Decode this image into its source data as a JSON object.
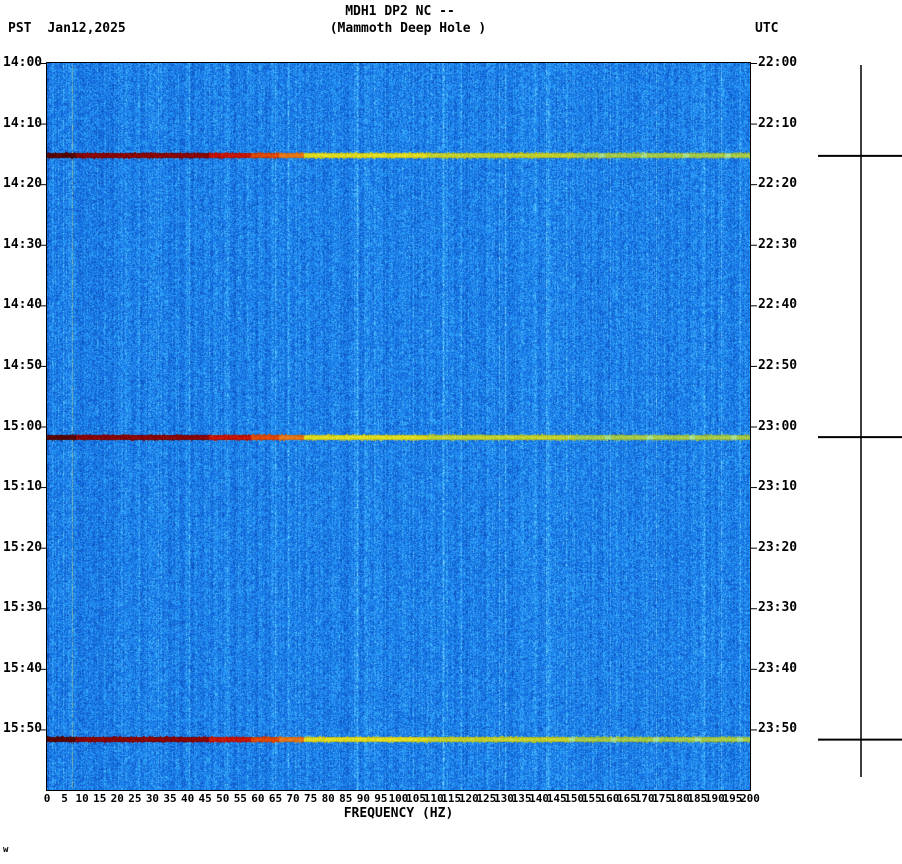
{
  "header": {
    "title": "MDH1 DP2 NC --",
    "subtitle": "(Mammoth Deep Hole )",
    "tz_left": "PST",
    "date": "Jan12,2025",
    "tz_right": "UTC"
  },
  "x_axis": {
    "label": "FREQUENCY (HZ)",
    "min": 0,
    "max": 200,
    "tick_step": 5,
    "ticks": [
      0,
      5,
      10,
      15,
      20,
      25,
      30,
      35,
      40,
      45,
      50,
      55,
      60,
      65,
      70,
      75,
      80,
      85,
      90,
      95,
      100,
      105,
      110,
      115,
      120,
      125,
      130,
      135,
      140,
      145,
      150,
      155,
      160,
      165,
      170,
      175,
      180,
      185,
      190,
      195,
      200
    ]
  },
  "left_ticks": [
    "14:00",
    "14:10",
    "14:20",
    "14:30",
    "14:40",
    "14:50",
    "15:00",
    "15:10",
    "15:20",
    "15:30",
    "15:40",
    "15:50"
  ],
  "right_ticks": [
    "22:00",
    "22:10",
    "22:20",
    "22:30",
    "22:40",
    "22:50",
    "23:00",
    "23:10",
    "23:20",
    "23:30",
    "23:40",
    "23:50"
  ],
  "corner_mark": "w",
  "chart_data": {
    "type": "heatmap",
    "title": "MDH1 DP2 NC --",
    "subtitle": "(Mammoth Deep Hole )",
    "xlabel": "FREQUENCY (HZ)",
    "x_range_hz": [
      0,
      200
    ],
    "x_tick_step_hz": 5,
    "time_start_pst": "14:00",
    "time_end_pst": "16:00",
    "time_start_utc": "22:00",
    "time_end_utc": "24:00",
    "time_tick_minutes": 10,
    "time_span_minutes": 120,
    "background": "broadband blue noise spectrogram",
    "persistent_tone_hz": 7,
    "events": [
      {
        "time_pst": "14:15",
        "time_utc": "22:15",
        "frac": 0.127,
        "description": "broadband event, dark red 0-46 Hz fading through orange/yellow to yellow-green at 200 Hz"
      },
      {
        "time_pst": "15:02",
        "time_utc": "23:02",
        "frac": 0.514,
        "description": "broadband event, dark red 0-46 Hz fading through orange/yellow to yellow-green at 200 Hz"
      },
      {
        "time_pst": "15:52",
        "time_utc": "23:52",
        "frac": 0.93,
        "description": "broadband event, dark red 0-46 Hz fading through orange/yellow to yellow-green at 200 Hz"
      }
    ],
    "event_bands_hz": [
      [
        0,
        8,
        "#5A0000"
      ],
      [
        8,
        46,
        "#8B0000"
      ],
      [
        46,
        58,
        "#C81400"
      ],
      [
        58,
        66,
        "#E04800"
      ],
      [
        66,
        73,
        "#E87818"
      ],
      [
        73,
        108,
        "#E0DC20"
      ],
      [
        108,
        150,
        "#C4D22E"
      ],
      [
        150,
        200,
        "#A6CC4A"
      ]
    ],
    "palette": {
      "noise_low": "#0A46B4",
      "noise_mid": "#1E8CEF",
      "noise_high": "#8CE6FF",
      "event_dark_red": "#7A0000",
      "event_red": "#C81400",
      "event_orange": "#E87818",
      "event_yellow": "#E0DC20",
      "event_yellow_green": "#BCCE34",
      "event_pale_green": "#A8E08C"
    },
    "legend_position": "none",
    "grid": false
  }
}
